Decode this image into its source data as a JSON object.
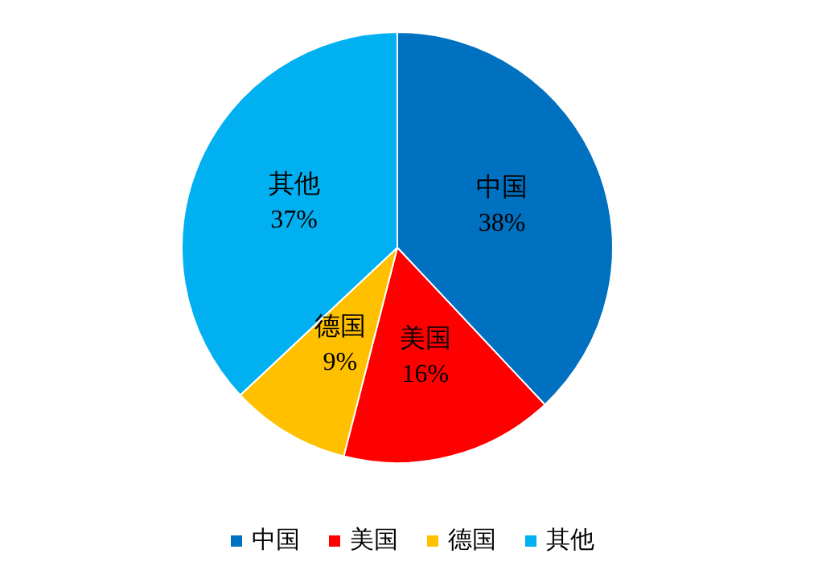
{
  "chart_data": {
    "type": "pie",
    "categories": [
      "中国",
      "美国",
      "德国",
      "其他"
    ],
    "values": [
      38,
      16,
      9,
      37
    ],
    "value_labels": [
      "38%",
      "16%",
      "9%",
      "37%"
    ],
    "colors": [
      "#0070c0",
      "#ff0000",
      "#ffc000",
      "#00b0f0"
    ],
    "legend": "bottom"
  }
}
